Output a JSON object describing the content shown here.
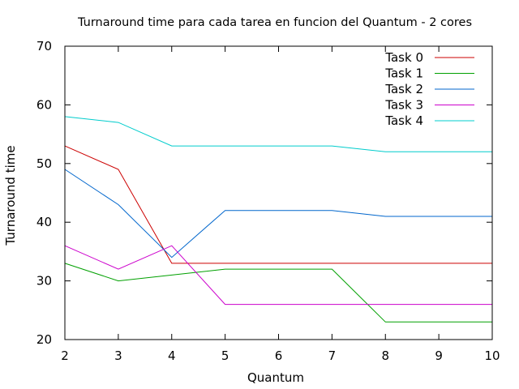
{
  "chart_data": {
    "type": "line",
    "title": "Turnaround time para cada tarea en funcion del Quantum - 2 cores",
    "xlabel": "Quantum",
    "ylabel": "Turnaround time",
    "xlim": [
      2,
      10
    ],
    "ylim": [
      20,
      70
    ],
    "xticks": [
      2,
      3,
      4,
      5,
      6,
      7,
      8,
      9,
      10
    ],
    "yticks": [
      20,
      30,
      40,
      50,
      60,
      70
    ],
    "grid": false,
    "legend": "top-right",
    "x": [
      2,
      3,
      4,
      5,
      6,
      7,
      8,
      9,
      10
    ],
    "series": [
      {
        "name": "Task 0",
        "color": "#cc0000",
        "values": [
          53,
          49,
          33,
          33,
          33,
          33,
          33,
          33,
          33
        ]
      },
      {
        "name": "Task 1",
        "color": "#00a000",
        "values": [
          33,
          30,
          31,
          32,
          32,
          32,
          23,
          23,
          23
        ]
      },
      {
        "name": "Task 2",
        "color": "#0066cc",
        "values": [
          49,
          43,
          34,
          42,
          42,
          42,
          41,
          41,
          41
        ]
      },
      {
        "name": "Task 3",
        "color": "#cc00cc",
        "values": [
          36,
          32,
          36,
          26,
          26,
          26,
          26,
          26,
          26
        ]
      },
      {
        "name": "Task 4",
        "color": "#00cccc",
        "values": [
          58,
          57,
          53,
          53,
          53,
          53,
          52,
          52,
          52
        ]
      }
    ]
  }
}
